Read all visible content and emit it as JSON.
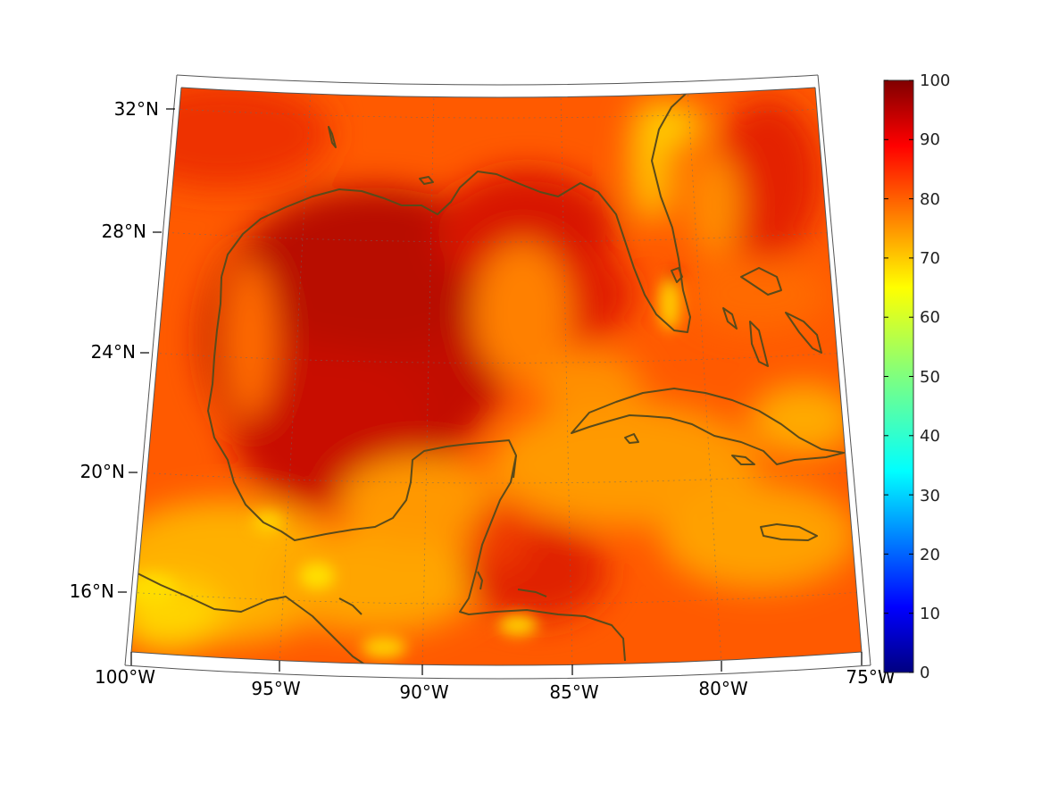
{
  "map": {
    "lat_labels": [
      "32°N",
      "28°N",
      "24°N",
      "20°N",
      "16°N"
    ],
    "lon_labels": [
      "100°W",
      "95°W",
      "90°W",
      "85°W",
      "80°W",
      "75°W"
    ],
    "extent": {
      "lon_min": -100,
      "lon_max": -75,
      "lat_min": 14,
      "lat_max": 33
    },
    "gridlines": "dotted",
    "coastline_color": "#5a4a1a"
  },
  "colorbar": {
    "min": 0,
    "max": 100,
    "tick_labels": [
      "100",
      "90",
      "80",
      "70",
      "60",
      "50",
      "40",
      "30",
      "20",
      "10",
      "0"
    ],
    "colormap": "jet"
  },
  "field": {
    "dominant_ocean_value_range": [
      80,
      95
    ],
    "gulf_core_value": 92,
    "land_edge_value_range": [
      65,
      75
    ]
  }
}
